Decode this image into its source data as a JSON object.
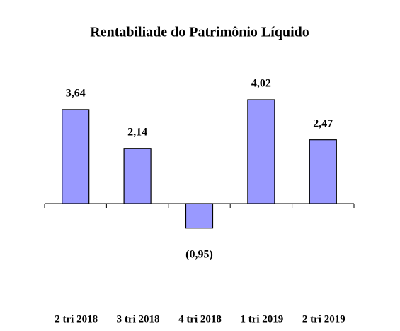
{
  "chart_data": {
    "type": "bar",
    "title": "Rentabiliade do Patrimônio Líquido",
    "categories": [
      "2 tri 2018",
      "3 tri 2018",
      "4 tri 2018",
      "1 tri 2019",
      "2 tri 2019"
    ],
    "values": [
      3.64,
      2.14,
      -0.95,
      4.02,
      2.47
    ],
    "value_labels": [
      "3,64",
      "2,14",
      "(0,95)",
      "4,02",
      "2,47"
    ],
    "color": "#9999ff"
  }
}
